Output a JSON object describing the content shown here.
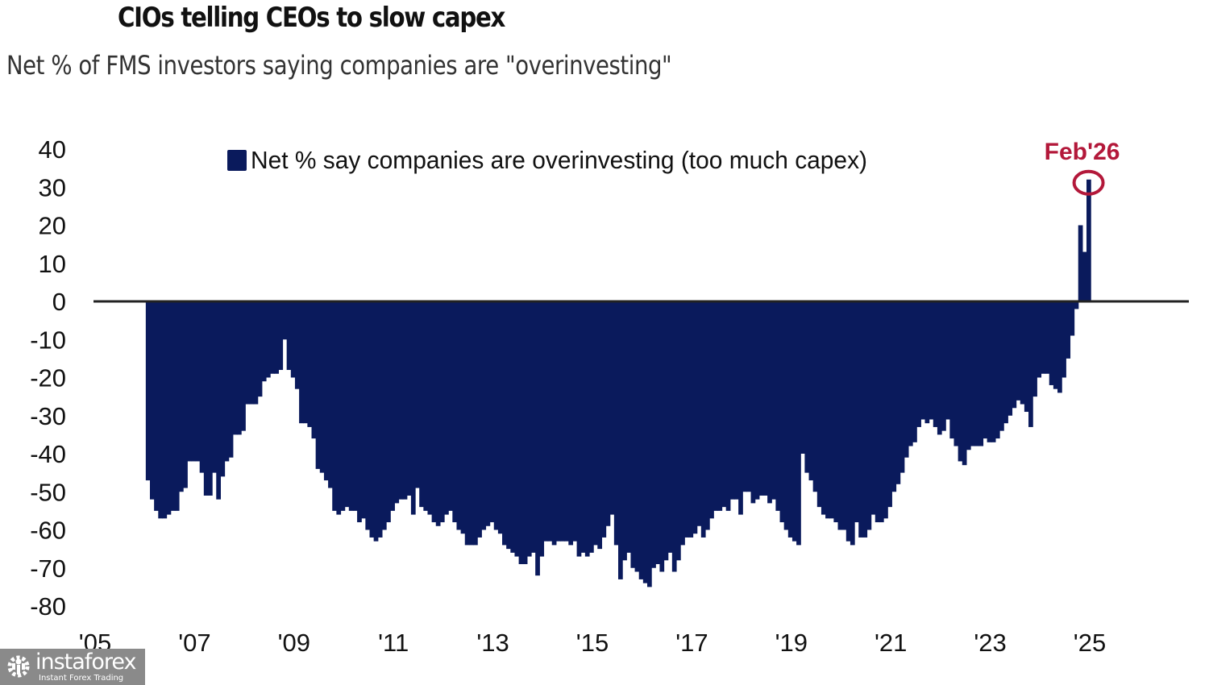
{
  "chart_data": {
    "type": "bar",
    "title": "CIOs telling CEOs to slow capex",
    "subtitle": "Net % of FMS investors saying companies are \"overinvesting\"",
    "xlabel": "",
    "ylabel": "",
    "ylim": [
      -80,
      40
    ],
    "yticks": [
      "40",
      "30",
      "20",
      "10",
      "0",
      "-10",
      "-20",
      "-30",
      "-40",
      "-50",
      "-60",
      "-70",
      "-80"
    ],
    "ytick_values": [
      40,
      30,
      20,
      10,
      0,
      -10,
      -20,
      -30,
      -40,
      -50,
      -60,
      -70,
      -80
    ],
    "xticks": [
      "'05",
      "'07",
      "'09",
      "'11",
      "'13",
      "'15",
      "'17",
      "'19",
      "'21",
      "'23",
      "'25"
    ],
    "xtick_years": [
      2005,
      2007,
      2009,
      2011,
      2013,
      2015,
      2017,
      2019,
      2021,
      2023,
      2025
    ],
    "xlim_years": [
      2005,
      2027
    ],
    "series_start": "2005-07",
    "frequency": "monthly",
    "legend": {
      "label": "Net % say companies are overinvesting (too much capex)",
      "position": "top-center"
    },
    "bar_color": "#0a1a5c",
    "annotation": {
      "label": "Feb'26",
      "color": "#b3183a"
    },
    "series": [
      {
        "name": "Net % say companies are overinvesting (too much capex)",
        "values": [
          -47,
          -52,
          -55,
          -57,
          -57,
          -56,
          -55,
          -55,
          -50,
          -49,
          -42,
          -42,
          -42,
          -45,
          -51,
          -51,
          -45,
          -52,
          -46,
          -42,
          -41,
          -35,
          -35,
          -34,
          -27,
          -27,
          -27,
          -25,
          -21,
          -20,
          -19,
          -19,
          -18,
          -10,
          -18,
          -20,
          -23,
          -32,
          -32,
          -33,
          -36,
          -44,
          -45,
          -47,
          -49,
          -55,
          -56,
          -55,
          -54,
          -55,
          -55,
          -58,
          -57,
          -60,
          -62,
          -63,
          -62,
          -60,
          -58,
          -55,
          -53,
          -52,
          -52,
          -51,
          -56,
          -49,
          -54,
          -55,
          -56,
          -58,
          -59,
          -58,
          -56,
          -55,
          -58,
          -60,
          -61,
          -64,
          -64,
          -64,
          -62,
          -60,
          -59,
          -58,
          -60,
          -61,
          -64,
          -65,
          -66,
          -67,
          -69,
          -69,
          -67,
          -66,
          -72,
          -67,
          -63,
          -63,
          -64,
          -63,
          -63,
          -63,
          -64,
          -63,
          -67,
          -66,
          -67,
          -66,
          -64,
          -65,
          -62,
          -59,
          -56,
          -64,
          -73,
          -68,
          -66,
          -70,
          -71,
          -73,
          -74,
          -75,
          -70,
          -69,
          -71,
          -68,
          -66,
          -71,
          -68,
          -64,
          -62,
          -62,
          -61,
          -59,
          -62,
          -60,
          -57,
          -55,
          -55,
          -54,
          -55,
          -52,
          -52,
          -56,
          -50,
          -50,
          -53,
          -52,
          -51,
          -51,
          -53,
          -52,
          -55,
          -58,
          -60,
          -62,
          -63,
          -64,
          -40,
          -45,
          -47,
          -50,
          -54,
          -56,
          -57,
          -57,
          -58,
          -60,
          -60,
          -63,
          -64,
          -58,
          -62,
          -62,
          -60,
          -56,
          -58,
          -58,
          -57,
          -54,
          -50,
          -48,
          -45,
          -41,
          -38,
          -37,
          -33,
          -31,
          -32,
          -31,
          -33,
          -35,
          -34,
          -31,
          -36,
          -38,
          -42,
          -43,
          -39,
          -38,
          -38,
          -38,
          -36,
          -37,
          -37,
          -36,
          -34,
          -32,
          -30,
          -28,
          -26,
          -27,
          -29,
          -33,
          -25,
          -20,
          -19,
          -19,
          -22,
          -23,
          -24,
          -20,
          -15,
          -9,
          -2,
          20,
          13,
          32
        ]
      }
    ]
  },
  "watermark": {
    "brand": "instaforex",
    "tagline": "Instant Forex Trading"
  }
}
